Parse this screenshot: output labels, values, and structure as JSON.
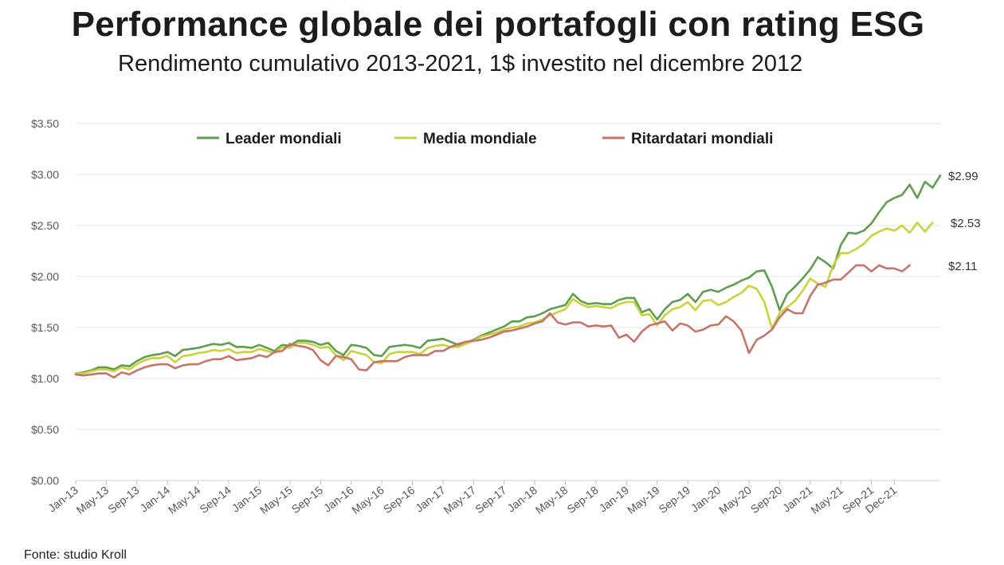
{
  "chart_data": {
    "type": "line",
    "title": "Performance globale dei portafogli con rating ESG",
    "subtitle": "Rendimento cumulativo 2013-2021, 1$ investito nel dicembre 2012",
    "source": "Fonte: studio Kroll",
    "xlabel": "",
    "ylabel": "",
    "ylim": [
      0,
      3.5
    ],
    "y_ticks": [
      "$0.00",
      "$0.50",
      "$1.00",
      "$1.50",
      "$2.00",
      "$2.50",
      "$3.00",
      "$3.50"
    ],
    "y_tick_values": [
      0,
      0.5,
      1.0,
      1.5,
      2.0,
      2.5,
      3.0,
      3.5
    ],
    "x_tick_labels": [
      "Jan-13",
      "May-13",
      "Sep-13",
      "Jan-14",
      "May-14",
      "Sep-14",
      "Jan-15",
      "May-15",
      "Sep-15",
      "Jan-16",
      "May-16",
      "Sep-16",
      "Jan-17",
      "May-17",
      "Sep-17",
      "Jan-18",
      "May-18",
      "Sep-18",
      "Jan-19",
      "May-19",
      "Sep-19",
      "Jan-20",
      "May-20",
      "Sep-20",
      "Jan-21",
      "May-21",
      "Sep-21",
      "Dec-21"
    ],
    "x_tick_months": [
      0,
      4,
      8,
      12,
      16,
      20,
      24,
      28,
      32,
      36,
      40,
      44,
      48,
      52,
      56,
      60,
      64,
      68,
      72,
      76,
      80,
      84,
      88,
      92,
      96,
      100,
      104,
      107
    ],
    "grid": true,
    "legend_position": "top",
    "series": [
      {
        "name": "Leader mondiali",
        "color": "#5e9e4f",
        "end_label": "$2.99",
        "values": [
          1.05,
          1.06,
          1.08,
          1.11,
          1.11,
          1.09,
          1.13,
          1.12,
          1.17,
          1.21,
          1.23,
          1.24,
          1.26,
          1.22,
          1.28,
          1.29,
          1.3,
          1.32,
          1.34,
          1.33,
          1.35,
          1.31,
          1.31,
          1.3,
          1.33,
          1.3,
          1.27,
          1.33,
          1.32,
          1.37,
          1.37,
          1.36,
          1.33,
          1.35,
          1.27,
          1.23,
          1.33,
          1.32,
          1.3,
          1.23,
          1.22,
          1.31,
          1.32,
          1.33,
          1.32,
          1.3,
          1.37,
          1.38,
          1.39,
          1.36,
          1.33,
          1.35,
          1.38,
          1.42,
          1.45,
          1.48,
          1.51,
          1.56,
          1.56,
          1.6,
          1.61,
          1.64,
          1.68,
          1.7,
          1.72,
          1.83,
          1.76,
          1.73,
          1.74,
          1.73,
          1.73,
          1.77,
          1.79,
          1.79,
          1.65,
          1.68,
          1.58,
          1.68,
          1.75,
          1.77,
          1.83,
          1.75,
          1.85,
          1.87,
          1.85,
          1.89,
          1.92,
          1.96,
          1.99,
          2.05,
          2.06,
          1.9,
          1.67,
          1.83,
          1.9,
          1.98,
          2.07,
          2.19,
          2.14,
          2.08,
          2.31,
          2.43,
          2.42,
          2.45,
          2.52,
          2.63,
          2.73,
          2.77,
          2.8,
          2.9,
          2.77,
          2.93,
          2.87,
          2.99
        ]
      },
      {
        "name": "Media mondiale",
        "color": "#c9d23a",
        "end_label": "$2.53",
        "values": [
          1.05,
          1.05,
          1.07,
          1.09,
          1.09,
          1.07,
          1.11,
          1.09,
          1.14,
          1.18,
          1.2,
          1.2,
          1.22,
          1.16,
          1.22,
          1.23,
          1.25,
          1.26,
          1.28,
          1.27,
          1.29,
          1.25,
          1.26,
          1.26,
          1.29,
          1.27,
          1.25,
          1.31,
          1.3,
          1.35,
          1.35,
          1.33,
          1.3,
          1.31,
          1.23,
          1.18,
          1.27,
          1.25,
          1.23,
          1.16,
          1.15,
          1.24,
          1.26,
          1.26,
          1.26,
          1.24,
          1.3,
          1.32,
          1.33,
          1.31,
          1.31,
          1.34,
          1.37,
          1.41,
          1.43,
          1.45,
          1.48,
          1.5,
          1.51,
          1.54,
          1.55,
          1.58,
          1.62,
          1.65,
          1.68,
          1.78,
          1.73,
          1.7,
          1.71,
          1.7,
          1.69,
          1.73,
          1.75,
          1.75,
          1.62,
          1.63,
          1.52,
          1.62,
          1.68,
          1.7,
          1.75,
          1.67,
          1.76,
          1.77,
          1.72,
          1.75,
          1.8,
          1.84,
          1.91,
          1.88,
          1.75,
          1.49,
          1.64,
          1.7,
          1.76,
          1.86,
          1.98,
          1.93,
          1.9,
          2.11,
          2.23,
          2.23,
          2.27,
          2.32,
          2.4,
          2.44,
          2.47,
          2.45,
          2.5,
          2.43,
          2.53,
          2.44,
          2.53
        ]
      },
      {
        "name": "Ritardatari mondiali",
        "color": "#c8736a",
        "end_label": "$2.11",
        "values": [
          1.04,
          1.03,
          1.04,
          1.05,
          1.05,
          1.01,
          1.06,
          1.04,
          1.08,
          1.11,
          1.13,
          1.14,
          1.14,
          1.1,
          1.13,
          1.14,
          1.14,
          1.17,
          1.19,
          1.19,
          1.22,
          1.18,
          1.19,
          1.2,
          1.23,
          1.21,
          1.26,
          1.27,
          1.34,
          1.32,
          1.31,
          1.28,
          1.18,
          1.13,
          1.22,
          1.21,
          1.19,
          1.09,
          1.08,
          1.16,
          1.17,
          1.17,
          1.17,
          1.21,
          1.23,
          1.23,
          1.23,
          1.27,
          1.27,
          1.31,
          1.34,
          1.36,
          1.37,
          1.38,
          1.4,
          1.43,
          1.46,
          1.47,
          1.49,
          1.51,
          1.54,
          1.56,
          1.64,
          1.55,
          1.53,
          1.55,
          1.55,
          1.51,
          1.52,
          1.51,
          1.52,
          1.4,
          1.43,
          1.36,
          1.46,
          1.52,
          1.54,
          1.56,
          1.47,
          1.54,
          1.52,
          1.46,
          1.48,
          1.52,
          1.53,
          1.61,
          1.56,
          1.47,
          1.25,
          1.38,
          1.42,
          1.48,
          1.6,
          1.68,
          1.64,
          1.64,
          1.81,
          1.92,
          1.94,
          1.97,
          1.97,
          2.04,
          2.11,
          2.11,
          2.05,
          2.11,
          2.08,
          2.08,
          2.05,
          2.11
        ]
      }
    ]
  }
}
